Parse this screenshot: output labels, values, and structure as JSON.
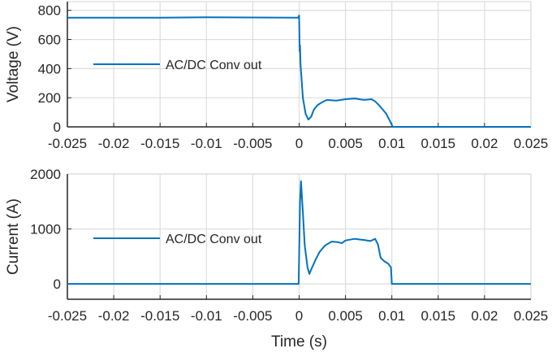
{
  "chart_data": [
    {
      "type": "line",
      "ylabel": "Voltage (V)",
      "xlabel": "",
      "xlim": [
        -0.025,
        0.025
      ],
      "ylim": [
        0,
        860
      ],
      "xticks": [
        "-0.025",
        "-0.02",
        "-0.015",
        "-0.01",
        "-0.005",
        "0",
        "0.005",
        "0.01",
        "0.015",
        "0.02",
        "0.025"
      ],
      "yticks": [
        "0",
        "200",
        "400",
        "600",
        "800"
      ],
      "grid": true,
      "legend": "center-left",
      "color": "#0072BD",
      "series": [
        {
          "name": "AC/DC Conv out",
          "x": [
            -0.025,
            -0.015,
            -0.01,
            -0.0001,
            0,
            5e-05,
            0.0001,
            0.00015,
            0.0004,
            0.0007,
            0.001,
            0.0013,
            0.0016,
            0.002,
            0.0025,
            0.003,
            0.004,
            0.005,
            0.006,
            0.007,
            0.0078,
            0.0082,
            0.0086,
            0.009,
            0.0094,
            0.0098,
            0.0101,
            0.015,
            0.02,
            0.025
          ],
          "y": [
            750,
            750,
            752,
            750,
            765,
            520,
            560,
            430,
            200,
            90,
            50,
            70,
            120,
            150,
            170,
            185,
            180,
            190,
            195,
            185,
            190,
            175,
            150,
            120,
            90,
            40,
            0,
            0,
            0,
            0
          ]
        }
      ]
    },
    {
      "type": "line",
      "ylabel": "Current (A)",
      "xlabel": "Time (s)",
      "xlim": [
        -0.025,
        0.025
      ],
      "ylim": [
        -280,
        2000
      ],
      "xticks": [
        "-0.025",
        "-0.02",
        "-0.015",
        "-0.01",
        "-0.005",
        "0",
        "0.005",
        "0.01",
        "0.015",
        "0.02",
        "0.025"
      ],
      "yticks": [
        "0",
        "1000",
        "2000"
      ],
      "grid": true,
      "legend": "center-left",
      "color": "#0072BD",
      "series": [
        {
          "name": "AC/DC Conv out",
          "x": [
            -0.025,
            -0.01,
            -5e-05,
            0,
            0.0001,
            0.0002,
            0.0004,
            0.0006,
            0.0009,
            0.0011,
            0.0014,
            0.0018,
            0.0022,
            0.0028,
            0.0035,
            0.0042,
            0.0046,
            0.005,
            0.006,
            0.007,
            0.0077,
            0.0082,
            0.0085,
            0.0088,
            0.0092,
            0.0096,
            0.0099,
            0.01,
            0.015,
            0.025
          ],
          "y": [
            0,
            0,
            0,
            500,
            1500,
            1870,
            1300,
            700,
            300,
            180,
            300,
            450,
            580,
            700,
            770,
            760,
            740,
            790,
            820,
            800,
            780,
            820,
            720,
            470,
            410,
            370,
            300,
            0,
            0,
            0
          ]
        }
      ]
    }
  ]
}
